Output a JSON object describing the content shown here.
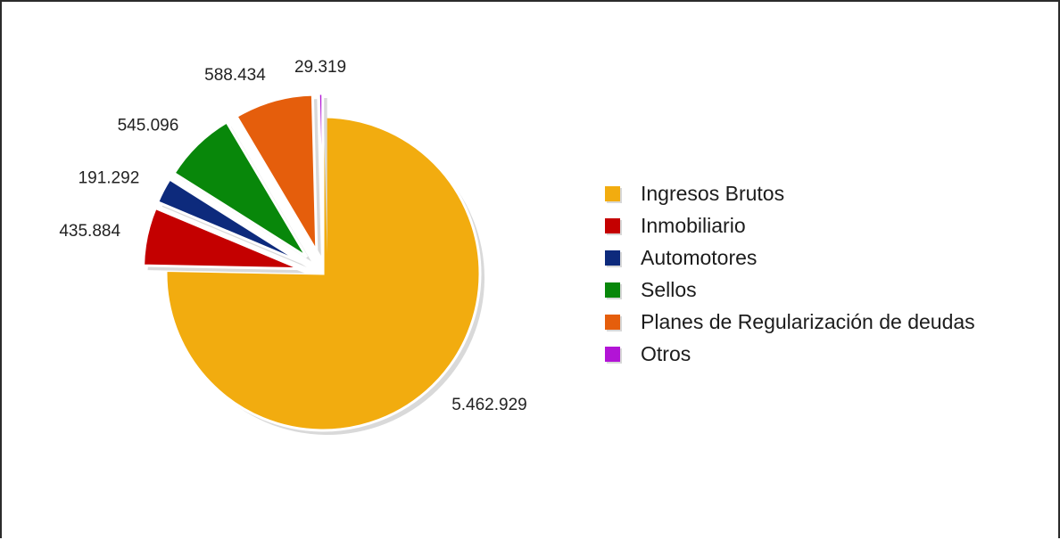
{
  "chart_data": {
    "type": "pie",
    "categories": [
      "Ingresos Brutos",
      "Inmobiliario",
      "Automotores",
      "Sellos",
      "Planes de Regularización de deudas",
      "Otros"
    ],
    "values": [
      5462929,
      435884,
      191292,
      545096,
      588434,
      29319
    ],
    "data_labels": [
      "5.462.929",
      "435.884",
      "191.292",
      "545.096",
      "588.434",
      "29.319"
    ],
    "colors": [
      "#f2ac0f",
      "#c40000",
      "#0d2a7c",
      "#08870a",
      "#e55e0c",
      "#b214d6"
    ],
    "start_angle_deg": 0,
    "direction": "clockwise-from-top",
    "exploded": [
      "Inmobiliario",
      "Automotores",
      "Sellos",
      "Planes de Regularización de deudas",
      "Otros"
    ],
    "legend_position": "right",
    "title": ""
  }
}
